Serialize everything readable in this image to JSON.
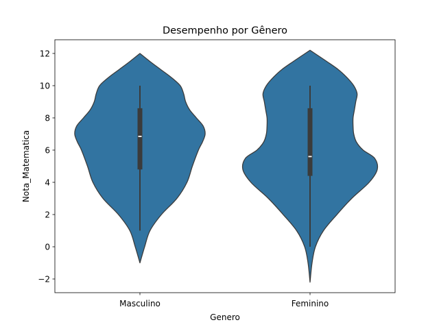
{
  "chart_data": {
    "type": "violin",
    "title": "Desempenho por Gênero",
    "xlabel": "Genero",
    "ylabel": "Nota_Matematica",
    "categories": [
      "Masculino",
      "Feminino"
    ],
    "ylim": [
      -2.85,
      12.85
    ],
    "yticks": [
      -2,
      0,
      2,
      4,
      6,
      8,
      10,
      12
    ],
    "ytick_labels": [
      "−2",
      "0",
      "2",
      "4",
      "6",
      "8",
      "10",
      "12"
    ],
    "grid": false,
    "colors": {
      "fill": "#3274a1",
      "edge": "#3b3b3b",
      "box": "#3b3b3b",
      "median": "#ffffff"
    },
    "violins": [
      {
        "category": "Masculino",
        "range": [
          -1.0,
          12.0
        ],
        "density": [
          [
            -1.0,
            0.0
          ],
          [
            0.0,
            0.07
          ],
          [
            1.0,
            0.15
          ],
          [
            2.0,
            0.32
          ],
          [
            3.0,
            0.55
          ],
          [
            4.0,
            0.7
          ],
          [
            5.0,
            0.78
          ],
          [
            6.0,
            0.87
          ],
          [
            6.5,
            0.93
          ],
          [
            7.0,
            0.97
          ],
          [
            7.5,
            0.94
          ],
          [
            8.0,
            0.84
          ],
          [
            8.5,
            0.74
          ],
          [
            9.0,
            0.68
          ],
          [
            9.5,
            0.65
          ],
          [
            10.0,
            0.6
          ],
          [
            10.5,
            0.47
          ],
          [
            11.0,
            0.31
          ],
          [
            11.5,
            0.15
          ],
          [
            12.0,
            0.0
          ]
        ],
        "box": {
          "whisker_low": 1.0,
          "q1": 4.8,
          "median": 6.85,
          "q3": 8.6,
          "whisker_high": 10.0
        }
      },
      {
        "category": "Feminino",
        "range": [
          -2.2,
          12.2
        ],
        "density": [
          [
            -2.2,
            0.0
          ],
          [
            -1.0,
            0.03
          ],
          [
            0.0,
            0.08
          ],
          [
            1.0,
            0.2
          ],
          [
            2.0,
            0.4
          ],
          [
            3.0,
            0.62
          ],
          [
            4.0,
            0.88
          ],
          [
            4.8,
            1.0
          ],
          [
            5.5,
            0.96
          ],
          [
            6.0,
            0.79
          ],
          [
            6.5,
            0.69
          ],
          [
            7.0,
            0.65
          ],
          [
            7.5,
            0.64
          ],
          [
            8.0,
            0.64
          ],
          [
            8.5,
            0.66
          ],
          [
            9.0,
            0.68
          ],
          [
            9.5,
            0.7
          ],
          [
            10.0,
            0.65
          ],
          [
            10.5,
            0.55
          ],
          [
            11.0,
            0.42
          ],
          [
            11.5,
            0.25
          ],
          [
            12.2,
            0.0
          ]
        ],
        "box": {
          "whisker_low": 0.0,
          "q1": 4.4,
          "median": 5.6,
          "q3": 8.6,
          "whisker_high": 10.0
        }
      }
    ]
  }
}
